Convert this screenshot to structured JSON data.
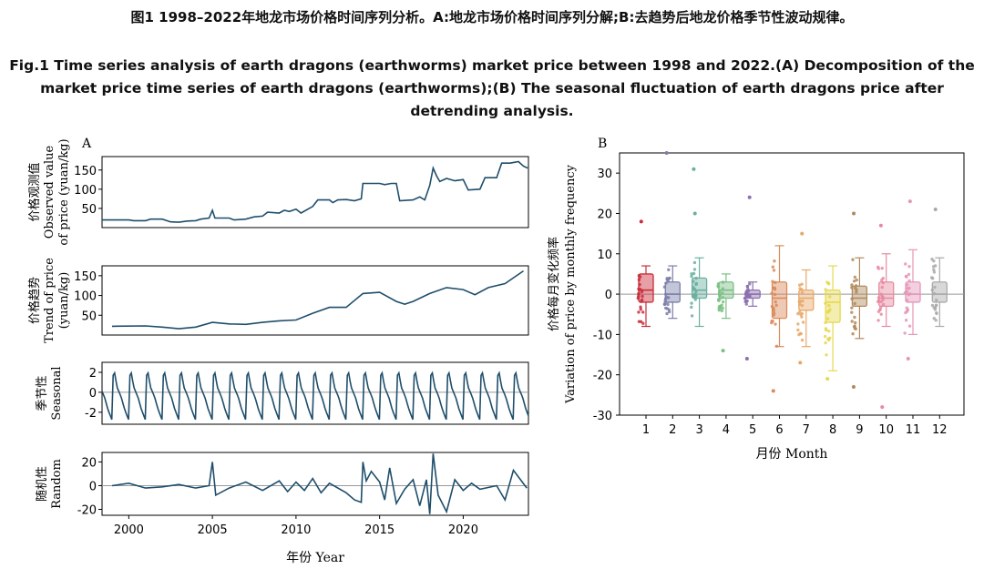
{
  "caption": {
    "cn": "图1 1998–2022年地龙市场价格时间序列分析。A:地龙市场价格时间序列分解;B:去趋势后地龙价格季节性波动规律。",
    "en": "Fig.1 Time series analysis of earth dragons (earthworms) market price between 1998 and 2022.(A) Decomposition of the market price time series of earth dragons (earthworms);(B) The seasonal fluctuation of earth dragons price after detrending analysis."
  },
  "chart_data": [
    {
      "panel": "A",
      "type": "line",
      "xlabel": "年份 Year",
      "xlim": [
        1998.4,
        2023.9
      ],
      "x_ticks": [
        2000,
        2005,
        2010,
        2015,
        2020
      ],
      "color": "#1f4e6b",
      "subplots": [
        {
          "name": "observed",
          "ylabel": [
            "价格观测值",
            "Observed value",
            "of price (yuan/kg)"
          ],
          "y_ticks": [
            50,
            100,
            150
          ],
          "ylim": [
            0,
            185
          ],
          "points": [
            [
              1998.4,
              20
            ],
            [
              2000,
              20
            ],
            [
              2000.3,
              18
            ],
            [
              2001,
              18
            ],
            [
              2001.3,
              22
            ],
            [
              2002,
              22
            ],
            [
              2002.5,
              15
            ],
            [
              2003,
              14
            ],
            [
              2003.5,
              17
            ],
            [
              2004,
              18
            ],
            [
              2004.3,
              22
            ],
            [
              2004.8,
              25
            ],
            [
              2005,
              45
            ],
            [
              2005.15,
              25
            ],
            [
              2006,
              25
            ],
            [
              2006.3,
              20
            ],
            [
              2007,
              22
            ],
            [
              2007.5,
              28
            ],
            [
              2008,
              30
            ],
            [
              2008.3,
              40
            ],
            [
              2009,
              38
            ],
            [
              2009.3,
              45
            ],
            [
              2009.6,
              42
            ],
            [
              2010,
              48
            ],
            [
              2010.3,
              38
            ],
            [
              2011,
              55
            ],
            [
              2011.3,
              72
            ],
            [
              2012,
              72
            ],
            [
              2012.2,
              65
            ],
            [
              2012.5,
              72
            ],
            [
              2013,
              73
            ],
            [
              2013.5,
              70
            ],
            [
              2013.9,
              75
            ],
            [
              2014,
              115
            ],
            [
              2015,
              115
            ],
            [
              2015.3,
              112
            ],
            [
              2015.7,
              115
            ],
            [
              2016,
              115
            ],
            [
              2016.2,
              70
            ],
            [
              2017,
              72
            ],
            [
              2017.4,
              80
            ],
            [
              2017.7,
              72
            ],
            [
              2018,
              110
            ],
            [
              2018.2,
              155
            ],
            [
              2018.4,
              135
            ],
            [
              2018.6,
              120
            ],
            [
              2019,
              128
            ],
            [
              2019.5,
              122
            ],
            [
              2020,
              125
            ],
            [
              2020.3,
              98
            ],
            [
              2021,
              100
            ],
            [
              2021.3,
              130
            ],
            [
              2022,
              130
            ],
            [
              2022.3,
              168
            ],
            [
              2022.8,
              168
            ],
            [
              2023.3,
              172
            ],
            [
              2023.6,
              160
            ],
            [
              2023.85,
              155
            ]
          ]
        },
        {
          "name": "trend",
          "ylabel": [
            "价格趋势",
            "Trend of price",
            "(yuan/kg)"
          ],
          "y_ticks": [
            50,
            100,
            150
          ],
          "ylim": [
            0,
            175
          ],
          "points": [
            [
              1999,
              22
            ],
            [
              2001,
              23
            ],
            [
              2002,
              20
            ],
            [
              2003,
              16
            ],
            [
              2004,
              20
            ],
            [
              2005,
              32
            ],
            [
              2006,
              28
            ],
            [
              2007,
              27
            ],
            [
              2008,
              32
            ],
            [
              2009,
              36
            ],
            [
              2010,
              38
            ],
            [
              2011,
              55
            ],
            [
              2012,
              70
            ],
            [
              2013,
              70
            ],
            [
              2014,
              105
            ],
            [
              2015,
              108
            ],
            [
              2016,
              85
            ],
            [
              2016.5,
              78
            ],
            [
              2017,
              85
            ],
            [
              2018,
              105
            ],
            [
              2019,
              120
            ],
            [
              2020,
              115
            ],
            [
              2020.7,
              102
            ],
            [
              2021.5,
              120
            ],
            [
              2022.5,
              130
            ],
            [
              2023.6,
              162
            ]
          ]
        },
        {
          "name": "seasonal",
          "ylabel": [
            "季节性",
            "Seasonal"
          ],
          "y_ticks": [
            -2,
            0,
            2
          ],
          "ylim": [
            -3.2,
            3.0
          ],
          "period": 1,
          "range": [
            -2.8,
            2.6
          ]
        },
        {
          "name": "random",
          "ylabel": [
            "随机性",
            "Random"
          ],
          "y_ticks": [
            -20,
            0,
            20
          ],
          "ylim": [
            -25,
            28
          ],
          "points": [
            [
              1999,
              0
            ],
            [
              2000,
              2
            ],
            [
              2001,
              -2
            ],
            [
              2002,
              -1
            ],
            [
              2003,
              1
            ],
            [
              2004,
              -2
            ],
            [
              2004.8,
              0
            ],
            [
              2005,
              20
            ],
            [
              2005.2,
              -8
            ],
            [
              2006,
              -2
            ],
            [
              2007,
              3
            ],
            [
              2008,
              -4
            ],
            [
              2009,
              4
            ],
            [
              2009.5,
              -5
            ],
            [
              2010,
              3
            ],
            [
              2010.5,
              -4
            ],
            [
              2011,
              6
            ],
            [
              2011.5,
              -6
            ],
            [
              2012,
              2
            ],
            [
              2013,
              -6
            ],
            [
              2013.5,
              -12
            ],
            [
              2013.9,
              -14
            ],
            [
              2014,
              20
            ],
            [
              2014.2,
              4
            ],
            [
              2014.5,
              12
            ],
            [
              2015,
              3
            ],
            [
              2015.3,
              -12
            ],
            [
              2015.6,
              15
            ],
            [
              2016,
              -15
            ],
            [
              2016.5,
              -3
            ],
            [
              2017,
              5
            ],
            [
              2017.4,
              -17
            ],
            [
              2017.8,
              5
            ],
            [
              2018,
              -24
            ],
            [
              2018.2,
              27
            ],
            [
              2018.5,
              -8
            ],
            [
              2019,
              -22
            ],
            [
              2019.5,
              5
            ],
            [
              2020,
              -4
            ],
            [
              2020.5,
              2
            ],
            [
              2021,
              -3
            ],
            [
              2022,
              0
            ],
            [
              2022.5,
              -12
            ],
            [
              2023,
              13
            ],
            [
              2023.8,
              -2
            ]
          ]
        }
      ]
    },
    {
      "panel": "B",
      "type": "box",
      "xlabel": "月份 Month",
      "ylabel": [
        "价格每月变化频率",
        "Variation of price by monthly frequency"
      ],
      "ylim": [
        -30,
        35
      ],
      "y_ticks": [
        -30,
        -20,
        -10,
        0,
        10,
        20,
        30
      ],
      "categories": [
        "1",
        "2",
        "3",
        "4",
        "5",
        "6",
        "7",
        "8",
        "9",
        "10",
        "11",
        "12"
      ],
      "colors": [
        "#c92d39",
        "#7b7ea8",
        "#6ab0a0",
        "#7bbf84",
        "#8b6fb0",
        "#d98a5a",
        "#e8a86a",
        "#e6d84f",
        "#b08a5c",
        "#e78aa0",
        "#e596b8",
        "#a9a9a9"
      ],
      "boxes": [
        {
          "q1": -2,
          "median": 1,
          "q3": 5,
          "wmin": -8,
          "wmax": 7,
          "outliers": [
            18
          ]
        },
        {
          "q1": -2,
          "median": 0,
          "q3": 3,
          "wmin": -6,
          "wmax": 7,
          "outliers": [
            35
          ]
        },
        {
          "q1": -1,
          "median": 1,
          "q3": 4,
          "wmin": -8,
          "wmax": 9,
          "outliers": [
            31,
            20
          ]
        },
        {
          "q1": -1,
          "median": 1,
          "q3": 3,
          "wmin": -6,
          "wmax": 5,
          "outliers": [
            -14
          ]
        },
        {
          "q1": -1,
          "median": 0,
          "q3": 1,
          "wmin": -3,
          "wmax": 3,
          "outliers": [
            24,
            -16
          ]
        },
        {
          "q1": -6,
          "median": -1,
          "q3": 3,
          "wmin": -13,
          "wmax": 12,
          "outliers": [
            -24
          ]
        },
        {
          "q1": -4,
          "median": -1,
          "q3": 1,
          "wmin": -13,
          "wmax": 6,
          "outliers": [
            15,
            -17
          ]
        },
        {
          "q1": -7,
          "median": -2,
          "q3": 1,
          "wmin": -19,
          "wmax": 7,
          "outliers": [
            -21
          ]
        },
        {
          "q1": -3,
          "median": -1,
          "q3": 2,
          "wmin": -11,
          "wmax": 9,
          "outliers": [
            20,
            -23
          ]
        },
        {
          "q1": -3,
          "median": -1,
          "q3": 3,
          "wmin": -8,
          "wmax": 10,
          "outliers": [
            17,
            -28
          ]
        },
        {
          "q1": -2,
          "median": 0,
          "q3": 3,
          "wmin": -10,
          "wmax": 11,
          "outliers": [
            23,
            -16
          ]
        },
        {
          "q1": -2,
          "median": 0,
          "q3": 3,
          "wmin": -8,
          "wmax": 9,
          "outliers": [
            21
          ]
        }
      ]
    }
  ]
}
